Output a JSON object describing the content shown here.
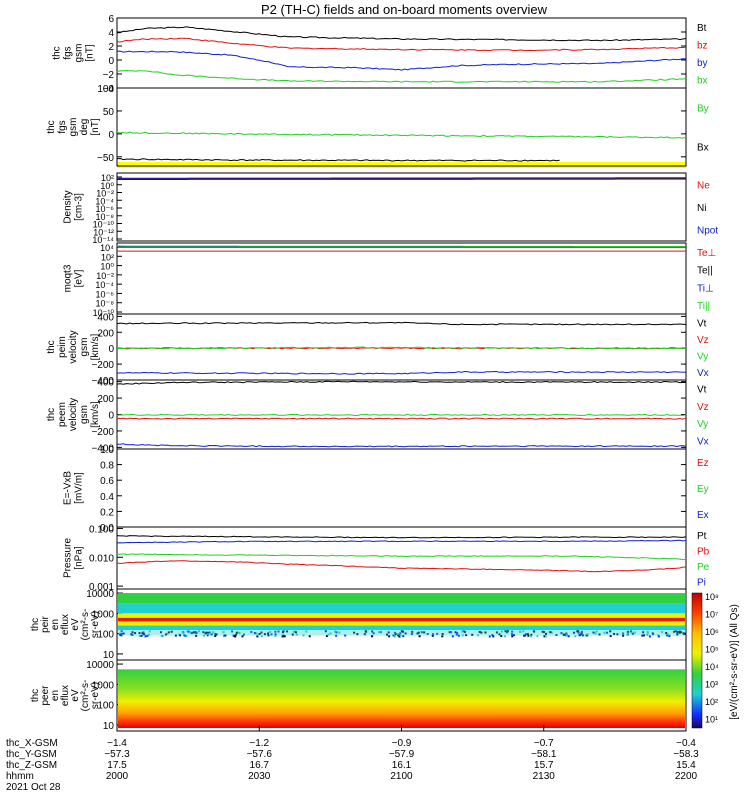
{
  "title": "P2 (TH-C) fields and on-board moments overview",
  "colors": {
    "black": "#000000",
    "red": "#e01010",
    "green": "#20d020",
    "blue": "#1020d0",
    "yellow": "#ffff00"
  },
  "chart_data": [
    {
      "type": "line",
      "panel": "fgs",
      "ylabel": [
        "thc",
        "fgs",
        "gsm",
        "[nT]"
      ],
      "ylim": [
        -4,
        6
      ],
      "ticks": [
        6,
        4,
        2,
        0,
        -2,
        -4
      ],
      "legend": [
        "Bt",
        "bz",
        "by",
        "bx"
      ],
      "series": [
        {
          "name": "Bt",
          "color": "black",
          "x": [
            0,
            0.05,
            0.12,
            0.2,
            0.3,
            0.5,
            0.7,
            0.85,
            1
          ],
          "y": [
            3.9,
            4.5,
            4.7,
            4.1,
            3.3,
            3.0,
            2.9,
            2.8,
            3.0
          ]
        },
        {
          "name": "bz",
          "color": "red",
          "x": [
            0,
            0.05,
            0.12,
            0.2,
            0.3,
            0.5,
            0.7,
            0.85,
            1
          ],
          "y": [
            2.6,
            3.0,
            3.1,
            2.4,
            1.7,
            1.5,
            1.4,
            1.5,
            1.8
          ]
        },
        {
          "name": "by",
          "color": "blue",
          "x": [
            0,
            0.1,
            0.2,
            0.27,
            0.3,
            0.42,
            0.5,
            0.6,
            0.7,
            0.85,
            1
          ],
          "y": [
            1.2,
            1.2,
            0.7,
            -0.3,
            -1.0,
            -1.1,
            -1.4,
            -0.8,
            -0.6,
            -0.5,
            0.2
          ]
        },
        {
          "name": "bx",
          "color": "green",
          "x": [
            0,
            0.05,
            0.1,
            0.2,
            0.3,
            0.5,
            0.7,
            0.85,
            1
          ],
          "y": [
            -1.6,
            -1.5,
            -2.1,
            -2.6,
            -3.0,
            -3.1,
            -3.1,
            -3.1,
            -2.7
          ]
        }
      ]
    },
    {
      "type": "line",
      "panel": "fgs-deg",
      "ylabel": [
        "thc",
        "fgs",
        "gsm",
        "deg",
        "[nT]"
      ],
      "ylim": [
        -70,
        100
      ],
      "ticks": [
        100,
        50,
        0,
        -50
      ],
      "legend": [
        "By",
        "Bx"
      ],
      "series": [
        {
          "name": "By",
          "color": "green",
          "x": [
            0,
            0.2,
            0.5,
            0.8,
            1
          ],
          "y": [
            3,
            0,
            -3,
            -6,
            -8
          ]
        },
        {
          "name": "Bx",
          "color": "black",
          "x": [
            0,
            0.2,
            0.5,
            0.78
          ],
          "y": [
            -55,
            -57,
            -58,
            -58
          ]
        }
      ]
    },
    {
      "type": "line",
      "panel": "density",
      "scale": "log",
      "ylabel": [
        "Density",
        "[cm-3]"
      ],
      "ylim_exp": [
        -15,
        2
      ],
      "tick_labels": [
        "10²",
        "10⁰",
        "10⁻²",
        "10⁻⁴",
        "10⁻⁶",
        "10⁻⁸",
        "10⁻¹⁰",
        "10⁻¹²",
        "10⁻¹⁴"
      ],
      "legend": [
        "Ne",
        "Ni",
        "Npot"
      ],
      "series": [
        {
          "name": "Ne",
          "color": "red",
          "x": [
            0,
            1
          ],
          "y_exp": [
            0.5,
            0.6
          ]
        },
        {
          "name": "Ni",
          "color": "black",
          "x": [
            0,
            1
          ],
          "y_exp": [
            0.4,
            0.5
          ]
        },
        {
          "name": "Npot",
          "color": "blue",
          "x": [
            0,
            1
          ],
          "y_exp": [
            0.7,
            0.8
          ]
        }
      ]
    },
    {
      "type": "line",
      "panel": "moqt3",
      "scale": "log",
      "ylabel": [
        "moqt3",
        "[eV]"
      ],
      "ylim_exp": [
        -10,
        4
      ],
      "tick_labels": [
        "10⁴",
        "10²",
        "10⁰",
        "10⁻²",
        "10⁻⁴",
        "10⁻⁶",
        "10⁻⁸",
        "10⁻¹⁰"
      ],
      "legend": [
        "Te⊥",
        "Te||",
        "Ti⊥",
        "Ti||"
      ],
      "series": [
        {
          "name": "Te⊥",
          "color": "red",
          "x": [
            0,
            0.6,
            1
          ],
          "y_exp": [
            2.4,
            2.4,
            2.4
          ]
        },
        {
          "name": "Te||",
          "color": "black",
          "x": [
            0,
            1
          ],
          "y_exp": [
            3.2,
            3.2
          ]
        },
        {
          "name": "Ti⊥",
          "color": "blue",
          "x": [
            0,
            1
          ],
          "y_exp": [
            3.3,
            3.3
          ]
        },
        {
          "name": "Ti||",
          "color": "green",
          "x": [
            0,
            1
          ],
          "y_exp": [
            3.4,
            3.3
          ]
        }
      ]
    },
    {
      "type": "line",
      "panel": "peim",
      "ylabel": [
        "thc",
        "peim",
        "velocity",
        "gsm",
        "[km/s]"
      ],
      "ylim": [
        -400,
        430
      ],
      "ticks": [
        400,
        200,
        0,
        -200,
        -400
      ],
      "legend": [
        "Vt",
        "Vz",
        "Vy",
        "Vx"
      ],
      "series": [
        {
          "name": "Vt",
          "color": "black",
          "x": [
            0,
            0.2,
            0.4,
            0.5,
            0.6,
            1
          ],
          "y": [
            310,
            315,
            320,
            320,
            300,
            300
          ]
        },
        {
          "name": "Vz",
          "color": "red",
          "x": [
            0,
            1
          ],
          "y": [
            0,
            0
          ]
        },
        {
          "name": "Vy",
          "color": "green",
          "x": [
            0,
            0.4,
            0.6,
            1
          ],
          "y": [
            -5,
            10,
            5,
            -5
          ]
        },
        {
          "name": "Vx",
          "color": "blue",
          "x": [
            0,
            0.2,
            0.4,
            0.5,
            0.6,
            1
          ],
          "y": [
            -310,
            -315,
            -320,
            -320,
            -300,
            -300
          ]
        }
      ]
    },
    {
      "type": "line",
      "panel": "peem",
      "ylabel": [
        "thc",
        "peem",
        "velocity",
        "gsm",
        "[km/s]"
      ],
      "ylim": [
        -420,
        420
      ],
      "ticks": [
        400,
        200,
        0,
        -200,
        -400
      ],
      "legend": [
        "Vt",
        "Vz",
        "Vy",
        "Vx"
      ],
      "series": [
        {
          "name": "Vt",
          "color": "black",
          "x": [
            0,
            0.1,
            0.4,
            0.7,
            1
          ],
          "y": [
            370,
            390,
            400,
            395,
            395
          ]
        },
        {
          "name": "Vz",
          "color": "red",
          "x": [
            0,
            1
          ],
          "y": [
            -50,
            -50
          ]
        },
        {
          "name": "Vy",
          "color": "green",
          "x": [
            0,
            1
          ],
          "y": [
            -5,
            -5
          ]
        },
        {
          "name": "Vx",
          "color": "blue",
          "x": [
            0,
            0.1,
            0.4,
            0.7,
            1
          ],
          "y": [
            -360,
            -380,
            -390,
            -385,
            -385
          ]
        }
      ]
    },
    {
      "type": "line",
      "panel": "efield",
      "ylabel": [
        "E=-VxB",
        "[mV/m]"
      ],
      "ylim": [
        0,
        1
      ],
      "ticks": [
        1.0,
        0.8,
        0.6,
        0.4,
        0.2,
        0.0
      ],
      "tick_labels": [
        "1.0",
        "0.8",
        "0.6",
        "0.4",
        "0.2",
        "0.0"
      ],
      "legend": [
        "Ez",
        "Ey",
        "Ex"
      ],
      "series": []
    },
    {
      "type": "line",
      "panel": "pressure",
      "scale": "log",
      "ylabel": [
        "Pressure",
        "[nPa]"
      ],
      "ylim_exp": [
        -3.1,
        -0.95
      ],
      "tick_vals": [
        0.1,
        0.01,
        0.001
      ],
      "tick_labels": [
        "0.100",
        "0.010",
        "0.001"
      ],
      "legend": [
        "Pt",
        "Pb",
        "Pe",
        "Pi"
      ],
      "series": [
        {
          "name": "Pt",
          "color": "black",
          "x": [
            0,
            0.2,
            0.5,
            0.8,
            1
          ],
          "y": [
            0.055,
            0.052,
            0.048,
            0.05,
            0.05
          ]
        },
        {
          "name": "Pi",
          "color": "blue",
          "x": [
            0,
            0.2,
            0.5,
            0.8,
            1
          ],
          "y": [
            0.032,
            0.035,
            0.036,
            0.036,
            0.038
          ]
        },
        {
          "name": "Pe",
          "color": "green",
          "x": [
            0,
            0.2,
            0.5,
            0.8,
            1
          ],
          "y": [
            0.013,
            0.012,
            0.011,
            0.011,
            0.0085
          ]
        },
        {
          "name": "Pb",
          "color": "red",
          "x": [
            0,
            0.1,
            0.2,
            0.3,
            0.5,
            0.7,
            0.85,
            0.95,
            1
          ],
          "y": [
            0.0062,
            0.0075,
            0.007,
            0.0058,
            0.0042,
            0.0037,
            0.0032,
            0.0038,
            0.0045
          ]
        }
      ]
    },
    {
      "type": "heatmap",
      "panel": "peir",
      "ylabel": [
        "thc",
        "peir",
        "en",
        "eflux",
        "eV",
        "(cm²-s-",
        "sr-eV)"
      ],
      "ylim_exp": [
        0.7,
        4.2
      ],
      "tick_vals": [
        10000,
        1000,
        100,
        10
      ],
      "tick_labels": [
        "10000",
        "1000",
        "100",
        "10"
      ],
      "bands": [
        [
          10000,
          3000,
          "green"
        ],
        [
          3000,
          1000,
          "cyan"
        ],
        [
          1000,
          600,
          "yellow"
        ],
        [
          600,
          400,
          "red"
        ],
        [
          400,
          250,
          "yellow"
        ],
        [
          250,
          150,
          "cyan"
        ],
        [
          150,
          80,
          "speckle"
        ]
      ]
    },
    {
      "type": "heatmap",
      "panel": "peer",
      "ylabel": [
        "thc",
        "peer",
        "en",
        "eflux",
        "eV",
        "(cm²-s-",
        "sr-eV)"
      ],
      "ylim_exp": [
        0.7,
        4.2
      ],
      "tick_vals": [
        10000,
        1000,
        100,
        10
      ],
      "tick_labels": [
        "10000",
        "1000",
        "100",
        "10"
      ],
      "colorbar_label": "[eV/(cm²-s-sr-eV)] (All Qs)",
      "colorbar_ticks": [
        "10⁸",
        "10⁷",
        "10⁶",
        "10⁵",
        "10⁴",
        "10³",
        "10²",
        "10¹"
      ]
    }
  ],
  "x_axis": {
    "rows": [
      {
        "label": "thc_X-GSM",
        "values": [
          "-1.4",
          "-1.2",
          "-0.9",
          "-0.7",
          "-0.4"
        ]
      },
      {
        "label": "thc_Y-GSM",
        "values": [
          "-57.3",
          "-57.6",
          "-57.9",
          "-58.1",
          "-58.3"
        ]
      },
      {
        "label": "thc_Z-GSM",
        "values": [
          "17.5",
          "16.7",
          "16.1",
          "15.7",
          "15.4"
        ]
      },
      {
        "label": "hhmm",
        "values": [
          "2000",
          "2030",
          "2100",
          "2130",
          "2200"
        ]
      }
    ],
    "date": "2021 Oct 28"
  }
}
